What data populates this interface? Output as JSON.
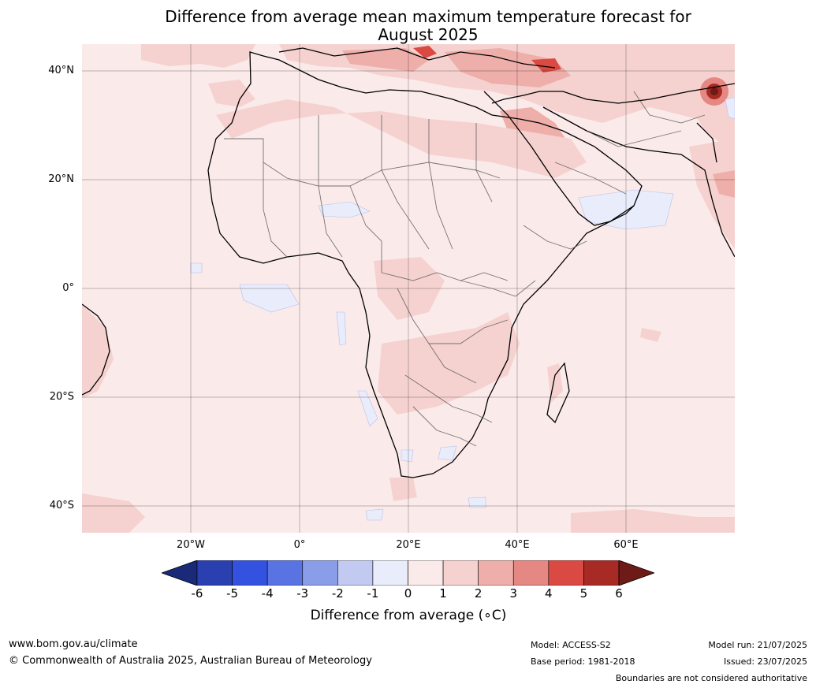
{
  "title_line1": "Difference from average mean maximum temperature forecast for",
  "title_line2": "August 2025",
  "lat_labels": [
    "40°N",
    "20°N",
    "0°",
    "20°S",
    "40°S"
  ],
  "lon_labels": [
    "20°W",
    "0°",
    "20°E",
    "40°E",
    "60°E"
  ],
  "colorbar": {
    "ticks": [
      "-6",
      "-5",
      "-4",
      "-3",
      "-2",
      "-1",
      "0",
      "1",
      "2",
      "3",
      "4",
      "5",
      "6"
    ],
    "colors": [
      "#1a2a78",
      "#2a3fb0",
      "#3452e0",
      "#5a73e2",
      "#8a9de8",
      "#c2caf2",
      "#e9ecfb",
      "#fbeaea",
      "#f5d2d0",
      "#eeaea9",
      "#e58782",
      "#db4a42",
      "#a82a24",
      "#6e1a16"
    ],
    "label": "Difference from average (∘C)"
  },
  "footer": {
    "website": "www.bom.gov.au/climate",
    "copyright": "© Commonwealth of Australia 2025, Australian Bureau of Meteorology",
    "model": "Model: ACCESS-S2",
    "base_period": "Base period: 1981-2018",
    "model_run": "Model run: 21/07/2025",
    "issued": "Issued: 23/07/2025",
    "disclaimer": "Boundaries are not considered authoritative"
  }
}
